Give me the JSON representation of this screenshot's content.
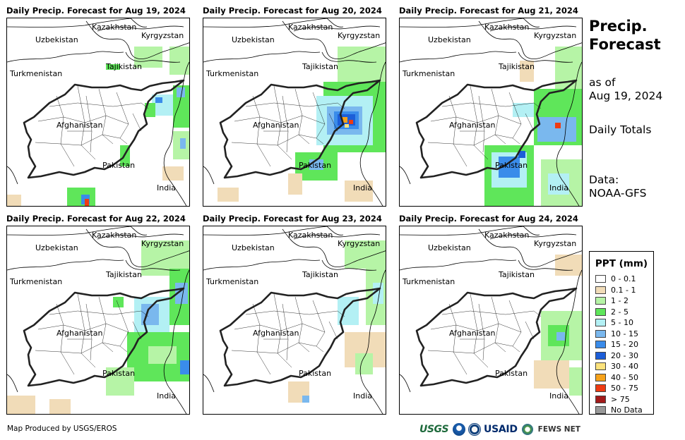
{
  "panels": [
    {
      "title": "Daily Precip. Forecast for Aug 19, 2024"
    },
    {
      "title": "Daily Precip. Forecast for Aug 20, 2024"
    },
    {
      "title": "Daily Precip. Forecast for Aug 21, 2024"
    },
    {
      "title": "Daily Precip. Forecast for Aug 22, 2024"
    },
    {
      "title": "Daily Precip. Forecast for Aug 23, 2024"
    },
    {
      "title": "Daily Precip. Forecast for Aug 24, 2024"
    }
  ],
  "map_labels": {
    "kazakhstan": "Kazakhstan",
    "uzbekistan": "Uzbekistan",
    "kyrgyzstan": "Kyrgyzstan",
    "tajikistan": "Tajikistan",
    "turkmenistan": "Turkmenistan",
    "afghanistan": "Afghanistan",
    "pakistan": "Pakistan",
    "india": "India"
  },
  "sidebar": {
    "title_line1": "Precip.",
    "title_line2": "Forecast",
    "asof_line1": "as of",
    "asof_line2": "Aug 19, 2024",
    "daily_totals": "Daily Totals",
    "data_line1": "Data:",
    "data_line2": "NOAA-GFS"
  },
  "legend": {
    "title": "PPT (mm)",
    "items": [
      {
        "label": "0 - 0.1",
        "color": "#ffffff"
      },
      {
        "label": "0.1 - 1",
        "color": "#f1dcb8"
      },
      {
        "label": "1 - 2",
        "color": "#b6f4a6"
      },
      {
        "label": "2 - 5",
        "color": "#5fe65a"
      },
      {
        "label": "5 - 10",
        "color": "#b3f0f4"
      },
      {
        "label": "10 - 15",
        "color": "#7ab8ee"
      },
      {
        "label": "15 - 20",
        "color": "#3a8cea"
      },
      {
        "label": "20 - 30",
        "color": "#1c5ed8"
      },
      {
        "label": "30 - 40",
        "color": "#fbe27c"
      },
      {
        "label": "40 - 50",
        "color": "#f6a21a"
      },
      {
        "label": "50 - 75",
        "color": "#ee3b12"
      },
      {
        "label": "> 75",
        "color": "#a31a1a"
      },
      {
        "label": "No Data",
        "color": "#999999"
      }
    ]
  },
  "credit": "Map Produced by USGS/EROS",
  "logos": {
    "usgs": "USGS",
    "usaid": "USAID",
    "fews": "FEWS NET"
  }
}
